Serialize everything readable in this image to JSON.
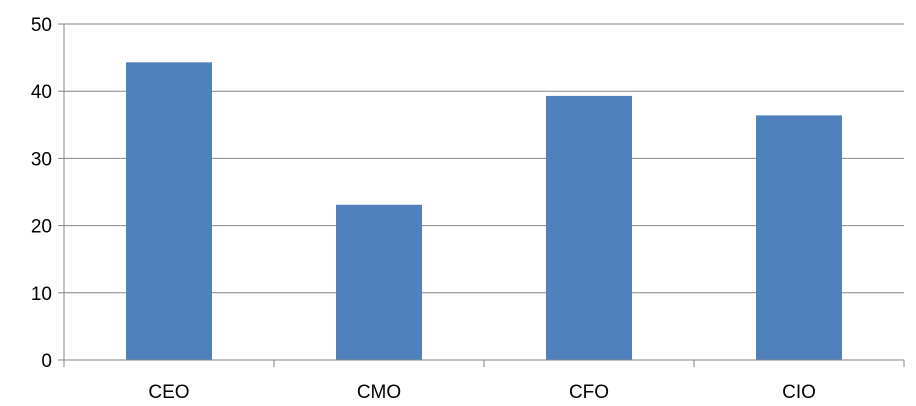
{
  "chart_data": {
    "type": "bar",
    "title": "",
    "xlabel": "",
    "ylabel": "",
    "categories": [
      "CEO",
      "CMO",
      "CFO",
      "CIO"
    ],
    "values": [
      44.3,
      23.1,
      39.3,
      36.4
    ],
    "ylim": [
      0,
      50
    ],
    "yticks": [
      0,
      10,
      20,
      30,
      40,
      50
    ],
    "grid": true,
    "legend": "none",
    "colors": {
      "bar": "#4f81bd",
      "grid": "#868686",
      "axis": "#868686"
    }
  }
}
